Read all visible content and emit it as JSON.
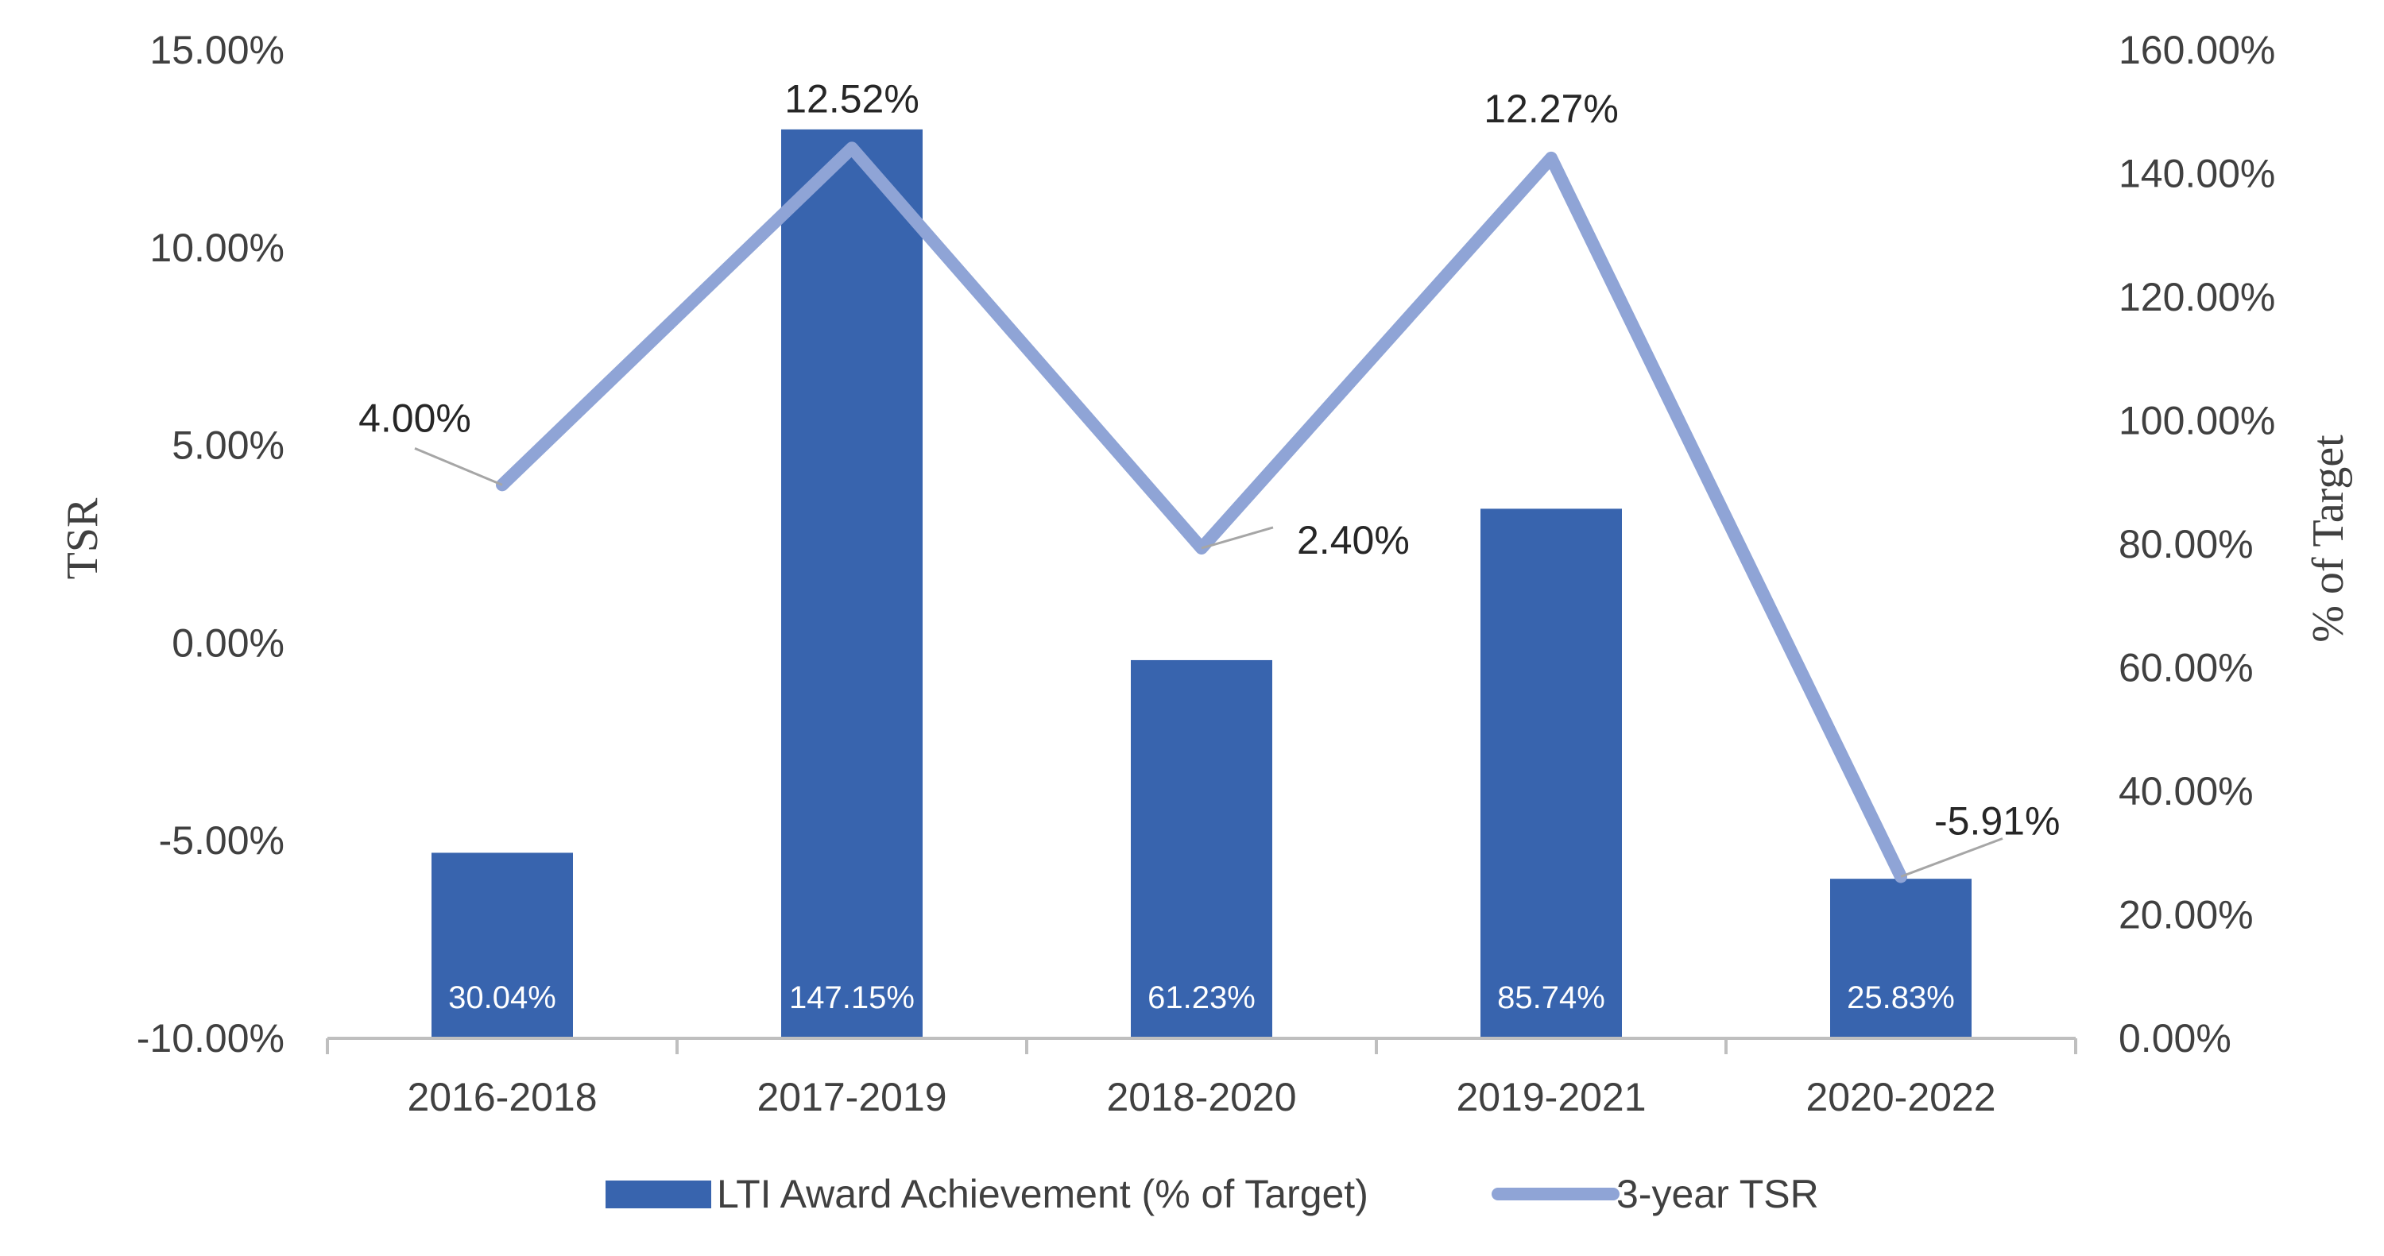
{
  "chart_data": {
    "type": "bar",
    "categories": [
      "2016-2018",
      "2017-2019",
      "2018-2020",
      "2019-2021",
      "2020-2022"
    ],
    "series": [
      {
        "name": "LTI Award Achievement (% of Target)",
        "type": "bar",
        "axis": "right",
        "values": [
          30.04,
          147.15,
          61.23,
          85.74,
          25.83
        ],
        "labels": [
          "30.04%",
          "147.15%",
          "61.23%",
          "85.74%",
          "25.83%"
        ],
        "color": "#3864AE"
      },
      {
        "name": "3-year TSR",
        "type": "line",
        "axis": "left",
        "values": [
          4.0,
          12.52,
          2.4,
          12.27,
          -5.91
        ],
        "labels": [
          "4.00%",
          "12.52%",
          "2.40%",
          "12.27%",
          "-5.91%"
        ],
        "color": "#8FA4D6"
      }
    ],
    "y_left": {
      "label": "TSR",
      "range": [
        -10,
        15
      ],
      "ticks": [
        "-10.00%",
        "-5.00%",
        "0.00%",
        "5.00%",
        "10.00%",
        "15.00%"
      ]
    },
    "y_right": {
      "label": "% of Target",
      "range": [
        0,
        160
      ],
      "ticks": [
        "0.00%",
        "20.00%",
        "40.00%",
        "60.00%",
        "80.00%",
        "100.00%",
        "120.00%",
        "140.00%",
        "160.00%"
      ]
    },
    "legend": {
      "position": "bottom"
    },
    "grid": false
  }
}
